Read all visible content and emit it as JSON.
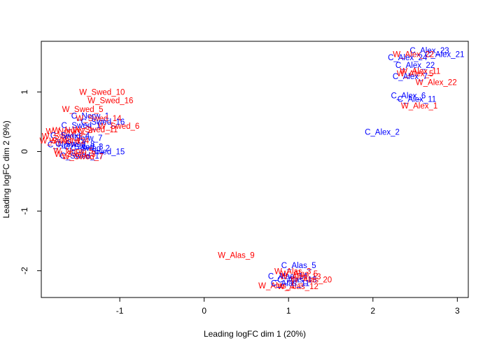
{
  "chart_data": {
    "type": "scatter",
    "title": "",
    "xlabel": "Leading logFC dim 1 (20%)",
    "ylabel": "Leading logFC dim 2 (9%)",
    "xlim": [
      -1.93,
      3.13
    ],
    "ylim": [
      -2.45,
      1.85
    ],
    "xticks": [
      -1,
      0,
      1,
      2,
      3
    ],
    "yticks": [
      -2,
      -1,
      0,
      1
    ],
    "grid": false,
    "legend": "none",
    "colors": {
      "C": "#0000ff",
      "W": "#ff0000"
    },
    "points": [
      {
        "label": "C_Alex_23",
        "x": 2.67,
        "y": 1.7,
        "group": "C"
      },
      {
        "label": "C_Alex_21",
        "x": 2.85,
        "y": 1.63,
        "group": "C"
      },
      {
        "label": "W_Alex_22",
        "x": 2.48,
        "y": 1.63,
        "group": "W"
      },
      {
        "label": "C_Alex_24",
        "x": 2.41,
        "y": 1.58,
        "group": "C"
      },
      {
        "label": "C_Alex_22",
        "x": 2.5,
        "y": 1.45,
        "group": "C"
      },
      {
        "label": "W_Alex_11",
        "x": 2.56,
        "y": 1.35,
        "group": "W"
      },
      {
        "label": "W_Alex_5",
        "x": 2.5,
        "y": 1.31,
        "group": "W"
      },
      {
        "label": "C_Alex_7",
        "x": 2.44,
        "y": 1.26,
        "group": "C"
      },
      {
        "label": "W_Alex_22",
        "x": 2.75,
        "y": 1.16,
        "group": "W"
      },
      {
        "label": "C_Alex_6",
        "x": 2.42,
        "y": 0.94,
        "group": "C"
      },
      {
        "label": "C_Alex_11",
        "x": 2.52,
        "y": 0.88,
        "group": "C"
      },
      {
        "label": "W_Alex_1",
        "x": 2.55,
        "y": 0.77,
        "group": "W"
      },
      {
        "label": "C_Alex_2",
        "x": 2.11,
        "y": 0.33,
        "group": "C"
      },
      {
        "label": "W_Swed_10",
        "x": -1.21,
        "y": 1.0,
        "group": "W"
      },
      {
        "label": "W_Swed_16",
        "x": -1.11,
        "y": 0.86,
        "group": "W"
      },
      {
        "label": "W_Swed_5",
        "x": -1.44,
        "y": 0.71,
        "group": "W"
      },
      {
        "label": "C_Norw_1",
        "x": -1.35,
        "y": 0.6,
        "group": "C"
      },
      {
        "label": "W_Swed_14",
        "x": -1.25,
        "y": 0.56,
        "group": "W"
      },
      {
        "label": "C_Swed_16",
        "x": -1.2,
        "y": 0.5,
        "group": "C"
      },
      {
        "label": "W_Swed_6",
        "x": -1.01,
        "y": 0.43,
        "group": "W"
      },
      {
        "label": "C_Swed_1",
        "x": -1.46,
        "y": 0.44,
        "group": "C"
      },
      {
        "label": "W_Swed_11",
        "x": -1.29,
        "y": 0.37,
        "group": "W"
      },
      {
        "label": "W_Norw_2",
        "x": -1.56,
        "y": 0.36,
        "group": "W"
      },
      {
        "label": "W_Norw_7",
        "x": -1.64,
        "y": 0.34,
        "group": "W"
      },
      {
        "label": "W_Swed_2",
        "x": -1.68,
        "y": 0.26,
        "group": "W"
      },
      {
        "label": "C_Swed_4",
        "x": -1.59,
        "y": 0.27,
        "group": "C"
      },
      {
        "label": "C_Norw_7",
        "x": -1.43,
        "y": 0.23,
        "group": "C"
      },
      {
        "label": "W_Norw_4",
        "x": -1.6,
        "y": 0.18,
        "group": "W"
      },
      {
        "label": "C_Swed_8",
        "x": -1.53,
        "y": 0.13,
        "group": "C"
      },
      {
        "label": "C_Norw_3",
        "x": -1.63,
        "y": 0.12,
        "group": "C"
      },
      {
        "label": "W_Swed_12",
        "x": -1.68,
        "y": 0.18,
        "group": "W"
      },
      {
        "label": "C_Swed_3",
        "x": -1.43,
        "y": 0.08,
        "group": "C"
      },
      {
        "label": "C_Swed_2",
        "x": -1.35,
        "y": 0.06,
        "group": "C"
      },
      {
        "label": "C_Swed_15",
        "x": -1.2,
        "y": 0.0,
        "group": "C"
      },
      {
        "label": "W_Norw_5",
        "x": -1.55,
        "y": 0.01,
        "group": "W"
      },
      {
        "label": "W_Swed_3",
        "x": -1.53,
        "y": -0.04,
        "group": "W"
      },
      {
        "label": "C_Swed_17",
        "x": -1.45,
        "y": -0.07,
        "group": "C"
      },
      {
        "label": "W_Swed_7",
        "x": -1.44,
        "y": -0.08,
        "group": "W"
      },
      {
        "label": "W_Alas_9",
        "x": 0.38,
        "y": -1.74,
        "group": "W"
      },
      {
        "label": "C_Alas_5",
        "x": 1.12,
        "y": -1.91,
        "group": "C"
      },
      {
        "label": "W_Alas_3",
        "x": 1.05,
        "y": -2.01,
        "group": "W"
      },
      {
        "label": "W_Alas_5",
        "x": 1.13,
        "y": -2.05,
        "group": "W"
      },
      {
        "label": "C_Alas_14",
        "x": 0.99,
        "y": -2.09,
        "group": "C"
      },
      {
        "label": "W_Alas_13",
        "x": 1.14,
        "y": -2.1,
        "group": "W"
      },
      {
        "label": "C_Alas_13",
        "x": 1.1,
        "y": -2.15,
        "group": "C"
      },
      {
        "label": "W_Alas_20",
        "x": 1.27,
        "y": -2.15,
        "group": "W"
      },
      {
        "label": "W_Alas_1",
        "x": 0.86,
        "y": -2.25,
        "group": "W"
      },
      {
        "label": "W_Alas_12",
        "x": 1.11,
        "y": -2.26,
        "group": "W"
      },
      {
        "label": "C_Alas_11",
        "x": 1.02,
        "y": -2.21,
        "group": "C"
      }
    ]
  }
}
